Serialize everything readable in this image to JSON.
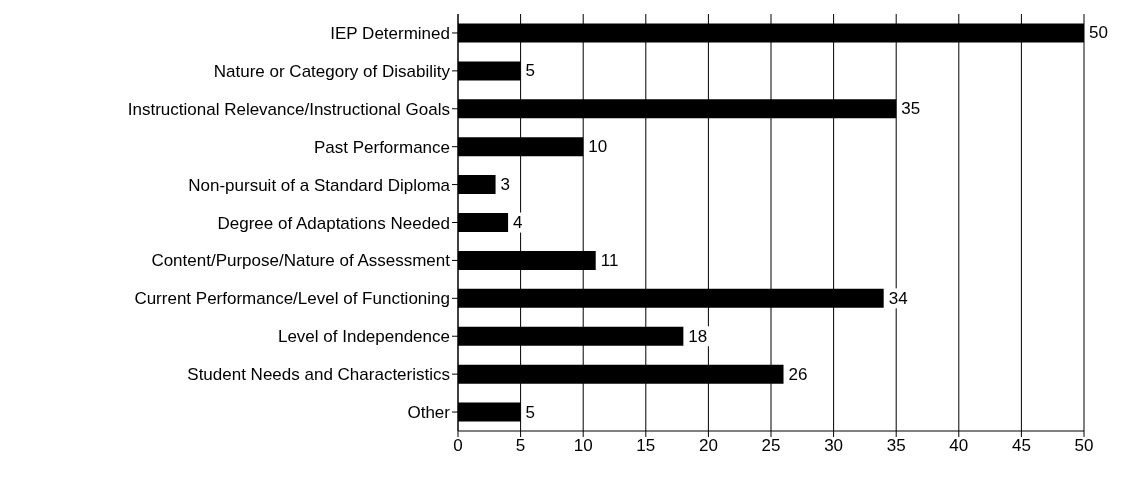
{
  "chart_data": {
    "type": "bar",
    "orientation": "horizontal",
    "categories": [
      "IEP Determined",
      "Nature or Category of Disability",
      "Instructional Relevance/Instructional Goals",
      "Past Performance",
      "Non-pursuit of a Standard Diploma",
      "Degree of Adaptations Needed",
      "Content/Purpose/Nature of Assessment",
      "Current Performance/Level of Functioning",
      "Level of Independence",
      "Student Needs and Characteristics",
      "Other"
    ],
    "values": [
      50,
      5,
      35,
      10,
      3,
      4,
      11,
      34,
      18,
      26,
      5
    ],
    "color": "#000000",
    "xlim": [
      0,
      50
    ],
    "xticks": [
      0,
      5,
      10,
      15,
      20,
      25,
      30,
      35,
      40,
      45,
      50
    ],
    "grid": "x",
    "data_labels": true
  }
}
